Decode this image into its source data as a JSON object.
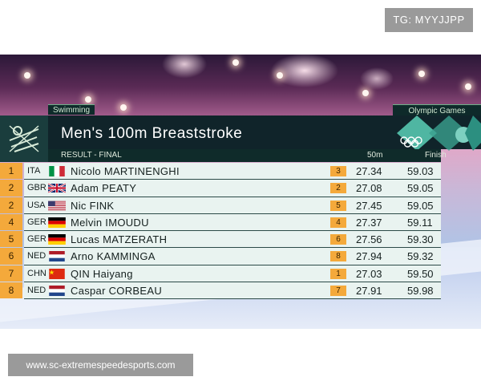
{
  "watermarks": {
    "tag": "TG: MYYJJPP",
    "url": "www.sc-extremespeedesports.com"
  },
  "board": {
    "category": "Swimming",
    "brand": "Olympic Games",
    "title": "Men's 100m Breaststroke",
    "header": {
      "result": "RESULT - FINAL",
      "split": "50m",
      "finish": "Finish"
    },
    "rows": [
      {
        "rank": "1",
        "nat": "ITA",
        "flag": "ita-flag-icon",
        "name": "Nicolo MARTINENGHI",
        "lane": "3",
        "split": "27.34",
        "finish": "59.03"
      },
      {
        "rank": "2",
        "nat": "GBR",
        "flag": "gbr-flag-icon",
        "name": "Adam PEATY",
        "lane": "2",
        "split": "27.08",
        "finish": "59.05"
      },
      {
        "rank": "2",
        "nat": "USA",
        "flag": "usa-flag-icon",
        "name": "Nic FINK",
        "lane": "5",
        "split": "27.45",
        "finish": "59.05"
      },
      {
        "rank": "4",
        "nat": "GER",
        "flag": "ger-flag-icon",
        "name": "Melvin IMOUDU",
        "lane": "4",
        "split": "27.37",
        "finish": "59.11"
      },
      {
        "rank": "5",
        "nat": "GER",
        "flag": "ger-flag-icon",
        "name": "Lucas MATZERATH",
        "lane": "6",
        "split": "27.56",
        "finish": "59.30"
      },
      {
        "rank": "6",
        "nat": "NED",
        "flag": "ned-flag-icon",
        "name": "Arno KAMMINGA",
        "lane": "8",
        "split": "27.94",
        "finish": "59.32"
      },
      {
        "rank": "7",
        "nat": "CHN",
        "flag": "chn-flag-icon",
        "name": "QIN Haiyang",
        "lane": "1",
        "split": "27.03",
        "finish": "59.50"
      },
      {
        "rank": "8",
        "nat": "NED",
        "flag": "ned-flag-icon",
        "name": "Caspar CORBEAU",
        "lane": "7",
        "split": "27.91",
        "finish": "59.98"
      }
    ]
  },
  "colors": {
    "accent": "#f4a93b",
    "board_dark": "#10242a",
    "row_bg": "#e9f3f0"
  }
}
